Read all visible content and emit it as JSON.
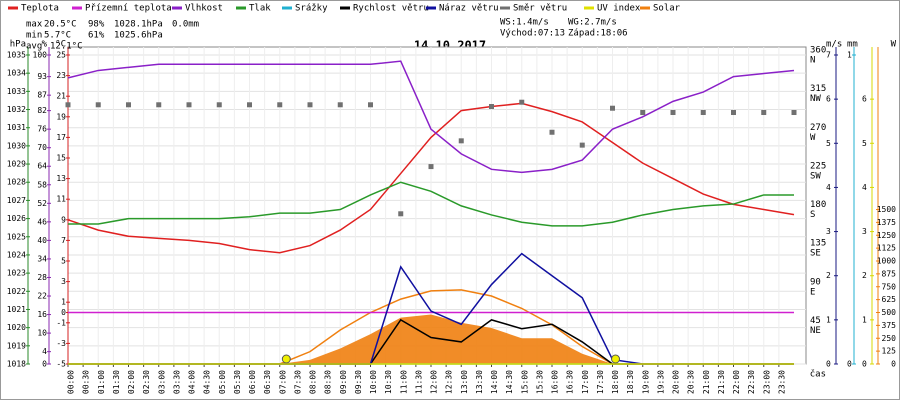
{
  "chart_data": {
    "type": "line",
    "title": "14.10.2017",
    "stats": {
      "max": {
        "label": "max",
        "temp": "20.5°C",
        "hum": "98%",
        "press": "1028.1hPa",
        "rain": "0.0mm"
      },
      "min": {
        "label": "min",
        "temp": "5.7°C",
        "hum": "61%",
        "press": "1025.6hPa"
      },
      "avg": {
        "label": "avg",
        "temp": "12.1°C"
      },
      "ws": "WS:1.4m/s",
      "wg": "WG:2.7m/s",
      "sunrise": "Východ:07:13",
      "sunset": "Západ:18:06"
    },
    "x_label": "čas",
    "xlim": [
      0,
      24
    ],
    "xticks": [
      {
        "value": 0,
        "label": "00:00"
      },
      {
        "value": 0.5,
        "label": "00:30"
      },
      {
        "value": 1,
        "label": "01:00"
      },
      {
        "value": 1.5,
        "label": "01:30"
      },
      {
        "value": 2,
        "label": "02:00"
      },
      {
        "value": 2.5,
        "label": "02:30"
      },
      {
        "value": 3,
        "label": "03:00"
      },
      {
        "value": 3.5,
        "label": "03:30"
      },
      {
        "value": 4,
        "label": "04:00"
      },
      {
        "value": 4.5,
        "label": "04:30"
      },
      {
        "value": 5,
        "label": "05:00"
      },
      {
        "value": 5.5,
        "label": "05:30"
      },
      {
        "value": 6,
        "label": "06:00"
      },
      {
        "value": 6.5,
        "label": "06:30"
      },
      {
        "value": 7,
        "label": "07:00"
      },
      {
        "value": 7.5,
        "label": "07:30"
      },
      {
        "value": 8,
        "label": "08:00"
      },
      {
        "value": 8.5,
        "label": "08:30"
      },
      {
        "value": 9,
        "label": "09:00"
      },
      {
        "value": 9.5,
        "label": "09:30"
      },
      {
        "value": 10,
        "label": "10:00"
      },
      {
        "value": 10.5,
        "label": "10:30"
      },
      {
        "value": 11,
        "label": "11:00"
      },
      {
        "value": 11.5,
        "label": "11:30"
      },
      {
        "value": 12,
        "label": "12:00"
      },
      {
        "value": 12.5,
        "label": "12:30"
      },
      {
        "value": 13,
        "label": "13:00"
      },
      {
        "value": 13.5,
        "label": "13:30"
      },
      {
        "value": 14,
        "label": "14:00"
      },
      {
        "value": 14.5,
        "label": "14:30"
      },
      {
        "value": 15,
        "label": "15:00"
      },
      {
        "value": 15.5,
        "label": "15:30"
      },
      {
        "value": 16,
        "label": "16:00"
      },
      {
        "value": 16.5,
        "label": "16:30"
      },
      {
        "value": 17,
        "label": "17:00"
      },
      {
        "value": 17.5,
        "label": "17:30"
      },
      {
        "value": 18,
        "label": "18:00"
      },
      {
        "value": 18.5,
        "label": "18:30"
      },
      {
        "value": 19,
        "label": "19:00"
      },
      {
        "value": 19.5,
        "label": "19:30"
      },
      {
        "value": 20,
        "label": "20:00"
      },
      {
        "value": 20.5,
        "label": "20:30"
      },
      {
        "value": 21,
        "label": "21:00"
      },
      {
        "value": 21.5,
        "label": "21:30"
      },
      {
        "value": 22,
        "label": "22:00"
      },
      {
        "value": 22.5,
        "label": "22:30"
      },
      {
        "value": 23,
        "label": "23:00"
      },
      {
        "value": 23.5,
        "label": "23:30"
      }
    ],
    "grid": true,
    "axes": {
      "hpa": {
        "unit": "hPa",
        "color": "#2a8a2a",
        "ylim": [
          1018,
          1035
        ],
        "yticks": [
          1035,
          1034,
          1033,
          1032,
          1031,
          1030,
          1029,
          1028,
          1027,
          1026,
          1025,
          1024,
          1023,
          1022,
          1021,
          1020,
          1019,
          1018
        ]
      },
      "pct": {
        "unit": "%",
        "color": "#8a2ab0",
        "ylim": [
          0,
          100
        ],
        "yticks": [
          100,
          93,
          87,
          82,
          76,
          70,
          64,
          58,
          52,
          46,
          40,
          34,
          28,
          22,
          16,
          10,
          4,
          0
        ]
      },
      "temp": {
        "unit": "°C",
        "color": "#d42020",
        "ylim": [
          -5,
          25
        ],
        "yticks": [
          25,
          23,
          21,
          19,
          17,
          15,
          13,
          11,
          9,
          7,
          5,
          3,
          1,
          0,
          -1,
          -3,
          -5
        ]
      },
      "dir": {
        "color": "#555555",
        "ylim": [
          0,
          360
        ],
        "yticks": [
          360,
          315,
          270,
          225,
          180,
          135,
          90,
          45
        ],
        "compass": [
          "N",
          "NW",
          "W",
          "SW",
          "S",
          "SE",
          "E",
          "NE"
        ]
      },
      "ms": {
        "unit": "m/s",
        "color": "#1a1a80",
        "ylim": [
          0,
          7
        ],
        "yticks": [
          7,
          6,
          5,
          4,
          3,
          2,
          1,
          0
        ]
      },
      "mm": {
        "unit": "mm",
        "color": "#20b0d0",
        "ylim": [
          0,
          1
        ],
        "yticks": [
          1,
          0
        ]
      },
      "uv": {
        "color": "#d8d800",
        "ylim": [
          0,
          7
        ],
        "yticks": [
          6,
          5,
          4,
          3,
          2,
          1,
          0
        ]
      },
      "w": {
        "unit": "W",
        "color": "#f08010",
        "ylim": [
          0,
          3000
        ],
        "yticks": [
          1500,
          1375,
          1250,
          1125,
          1000,
          875,
          750,
          625,
          500,
          375,
          250,
          125,
          0
        ]
      }
    },
    "x": [
      0,
      1,
      2,
      3,
      4,
      5,
      6,
      7,
      8,
      9,
      10,
      11,
      12,
      13,
      14,
      15,
      16,
      17,
      18,
      19,
      20,
      21,
      22,
      23,
      24
    ],
    "series": [
      {
        "name": "Teplota",
        "color": "#e02020",
        "axis": "temp",
        "style": "line",
        "values": [
          9.0,
          8.0,
          7.4,
          7.2,
          7.0,
          6.7,
          6.1,
          5.8,
          6.5,
          8.0,
          10.0,
          13.5,
          17.0,
          19.6,
          20.0,
          20.3,
          19.5,
          18.5,
          16.5,
          14.5,
          13.0,
          11.5,
          10.5,
          10.0,
          9.5
        ]
      },
      {
        "name": "Přízemní teplota",
        "color": "#d020d0",
        "axis": "temp",
        "style": "line",
        "values": [
          0,
          0,
          0,
          0,
          0,
          0,
          0,
          0,
          0,
          0,
          0,
          0,
          0,
          0,
          0,
          0,
          0,
          0,
          0,
          0,
          0,
          0,
          0,
          0,
          0
        ]
      },
      {
        "name": "Vlhkost",
        "color": "#8a20c8",
        "axis": "pct",
        "style": "line",
        "values": [
          92.6,
          95,
          96,
          97,
          97,
          97,
          97,
          97,
          97,
          97,
          97,
          98,
          76,
          68,
          63,
          62,
          63,
          66,
          76,
          80,
          85,
          88,
          93,
          94,
          95
        ]
      },
      {
        "name": "Tlak",
        "color": "#2a9a2a",
        "axis": "hpa",
        "style": "line",
        "values": [
          1025.7,
          1025.7,
          1026.0,
          1026.0,
          1026.0,
          1026.0,
          1026.1,
          1026.3,
          1026.3,
          1026.5,
          1027.3,
          1028.0,
          1027.5,
          1026.7,
          1026.2,
          1025.8,
          1025.6,
          1025.6,
          1025.8,
          1026.2,
          1026.5,
          1026.7,
          1026.8,
          1027.3,
          1027.3
        ]
      },
      {
        "name": "Srážky",
        "color": "#20b0d0",
        "axis": "mm",
        "style": "line",
        "values": [
          0,
          0,
          0,
          0,
          0,
          0,
          0,
          0,
          0,
          0,
          0,
          0,
          0,
          0,
          0,
          0,
          0,
          0,
          0,
          0,
          0,
          0,
          0,
          0,
          0
        ]
      },
      {
        "name": "Rychlost větru",
        "color": "#000000",
        "axis": "ms",
        "style": "line",
        "values": [
          0,
          0,
          0,
          0,
          0,
          0,
          0,
          0,
          0,
          0,
          0,
          1.0,
          0.6,
          0.5,
          1.0,
          0.8,
          0.9,
          0.5,
          0,
          0,
          0,
          0,
          0,
          0,
          0
        ]
      },
      {
        "name": "Náraz větru",
        "color": "#1010a0",
        "axis": "ms",
        "style": "line",
        "values": [
          0,
          0,
          0,
          0,
          0,
          0,
          0,
          0,
          0,
          0,
          0,
          2.2,
          1.2,
          0.9,
          1.8,
          2.5,
          2.0,
          1.5,
          0.1,
          0,
          0,
          0,
          0,
          0,
          0
        ]
      },
      {
        "name": "Směr větru",
        "color": "#707070",
        "axis": "dir",
        "style": "points",
        "values": [
          302,
          302,
          302,
          302,
          302,
          302,
          302,
          302,
          302,
          302,
          302,
          175,
          230,
          260,
          300,
          305,
          270,
          255,
          298,
          293,
          293,
          293,
          293,
          293,
          293
        ]
      },
      {
        "name": "UV index",
        "color": "#e0e000",
        "axis": "uv",
        "style": "line",
        "values": [
          0,
          0,
          0,
          0,
          0,
          0,
          0,
          0,
          0,
          0,
          0,
          0,
          0,
          0,
          0,
          0,
          0,
          0,
          0,
          0,
          0,
          0,
          0,
          0,
          0
        ]
      },
      {
        "name": "Solar",
        "color": "#f08010",
        "axis": "w",
        "style": "area",
        "values": [
          0,
          0,
          0,
          0,
          0,
          0,
          0,
          0,
          40,
          150,
          290,
          450,
          480,
          400,
          350,
          250,
          250,
          100,
          0,
          0,
          0,
          0,
          0,
          0,
          0
        ]
      }
    ],
    "solar_curve": {
      "color": "#f08010",
      "axis": "w",
      "values": [
        null,
        null,
        null,
        null,
        null,
        null,
        null,
        0,
        120,
        330,
        500,
        630,
        710,
        720,
        660,
        540,
        380,
        170,
        0,
        null,
        null,
        null,
        null,
        null,
        null
      ]
    },
    "sun_x": [
      7.217,
      18.1
    ]
  }
}
